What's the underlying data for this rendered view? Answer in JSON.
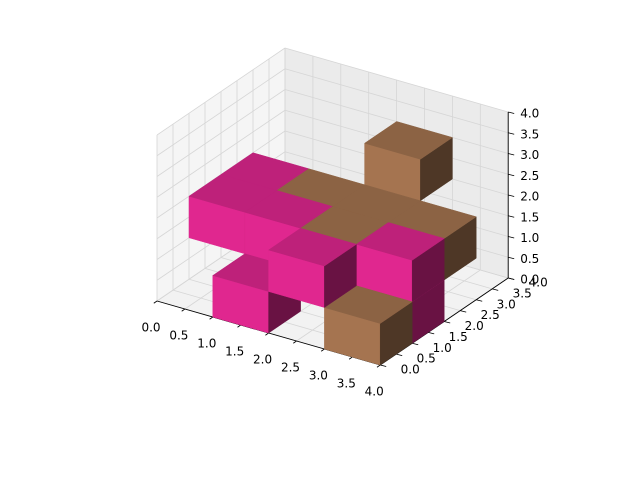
{
  "chart_data": {
    "type": "voxel",
    "grid": true,
    "xlim": [
      0,
      4
    ],
    "ylim": [
      0,
      4
    ],
    "zlim": [
      0,
      4
    ],
    "xticks": [
      "0.0",
      "0.5",
      "1.0",
      "1.5",
      "2.0",
      "2.5",
      "3.0",
      "3.5",
      "4.0"
    ],
    "yticks": [
      "0.0",
      "0.5",
      "1.0",
      "1.5",
      "2.0",
      "2.5",
      "3.0",
      "3.5",
      "4.0"
    ],
    "zticks": [
      "0.0",
      "0.5",
      "1.0",
      "1.5",
      "2.0",
      "2.5",
      "3.0",
      "3.5",
      "4.0"
    ],
    "colors": {
      "pink": "#e0278f",
      "brown": "#a57450"
    },
    "voxels": [
      {
        "x": 2,
        "y": 3,
        "z": 2,
        "color": "brown"
      },
      {
        "x": 1,
        "y": 2,
        "z": 1,
        "color": "brown"
      },
      {
        "x": 2,
        "y": 2,
        "z": 1,
        "color": "brown"
      },
      {
        "x": 3,
        "y": 2,
        "z": 1,
        "color": "brown"
      },
      {
        "x": 2,
        "y": 1,
        "z": 1,
        "color": "brown"
      },
      {
        "x": 3,
        "y": 0,
        "z": 0,
        "color": "brown"
      },
      {
        "x": 0,
        "y": 1,
        "z": 1,
        "color": "pink"
      },
      {
        "x": 0,
        "y": 2,
        "z": 1,
        "color": "pink"
      },
      {
        "x": 1,
        "y": 1,
        "z": 1,
        "color": "pink"
      },
      {
        "x": 1,
        "y": 0,
        "z": 0,
        "color": "pink"
      },
      {
        "x": 2,
        "y": 0,
        "z": 1,
        "color": "pink"
      },
      {
        "x": 3,
        "y": 1,
        "z": 1,
        "color": "pink"
      },
      {
        "x": 3,
        "y": 1,
        "z": 0,
        "color": "pink"
      }
    ]
  }
}
